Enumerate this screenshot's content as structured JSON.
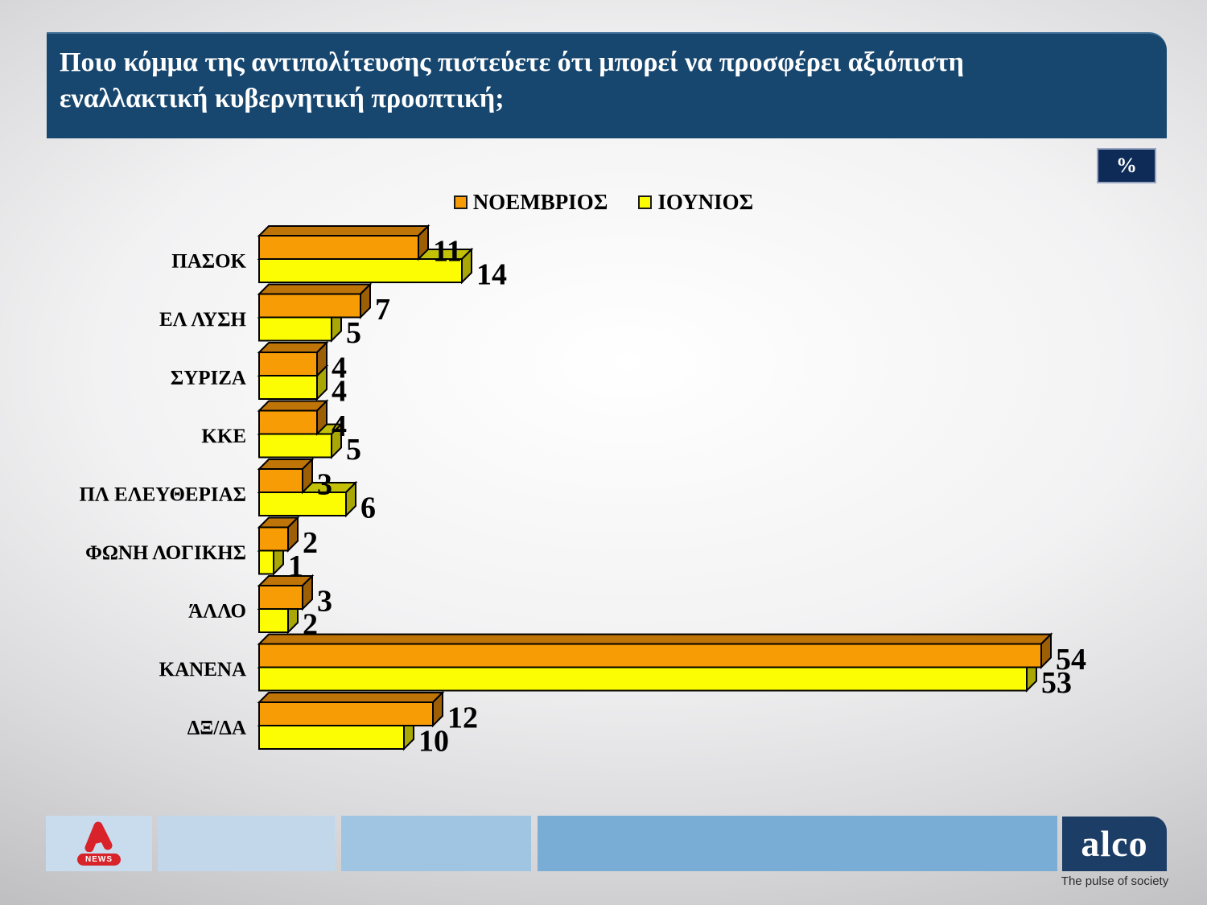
{
  "slide_title": {
    "line1": "Ποιο κόμμα της αντιπολίτευσης πιστεύετε ότι μπορεί να προσφέρει αξιόπιστη",
    "line2": "εναλλακτική κυβερνητική προοπτική;"
  },
  "percent_badge": "%",
  "chart_data": {
    "type": "bar",
    "orientation": "horizontal",
    "style": "3d",
    "unit": "%",
    "value_axis_range": [
      0,
      60
    ],
    "grid": false,
    "legend_position": "top",
    "categories": [
      "ΠΑΣΟΚ",
      "ΕΛ ΛΥΣΗ",
      "ΣΥΡΙΖΑ",
      "ΚΚΕ",
      "ΠΛ ΕΛΕΥΘΕΡΙΑΣ",
      "ΦΩΝΗ ΛΟΓΙΚΗΣ",
      "ΆΛΛΟ",
      "ΚΑΝΕΝΑ",
      "ΔΞ/ΔΑ"
    ],
    "series": [
      {
        "name": "ΝΟΕΜΒΡΙΟΣ",
        "values": [
          11,
          7,
          4,
          4,
          3,
          2,
          3,
          54,
          12
        ],
        "front_color": "#F79C04",
        "top_color": "#BE7406",
        "side_color": "#9C5F05"
      },
      {
        "name": "ΙΟΥΝΙΟΣ",
        "values": [
          14,
          5,
          4,
          5,
          6,
          1,
          2,
          53,
          10
        ],
        "front_color": "#FCFC02",
        "top_color": "#C2C108",
        "side_color": "#A8A705"
      }
    ]
  },
  "footer": {
    "alpha_news_label": "NEWS",
    "alco_wordmark": "alco",
    "alco_tagline": "The pulse of society"
  },
  "colors": {
    "header_bg": "#17476F",
    "badge_bg": "#0E2B58",
    "title_text": "#FFFFFF",
    "bar_outline": "#000000",
    "value_label": "#000000",
    "footer_segments": [
      "#C8DCEE",
      "#C2D7EA",
      "#9FC5E3",
      "#7AADD6"
    ],
    "alco_bg": "#1C3E66",
    "alpha_red": "#D8232A"
  }
}
